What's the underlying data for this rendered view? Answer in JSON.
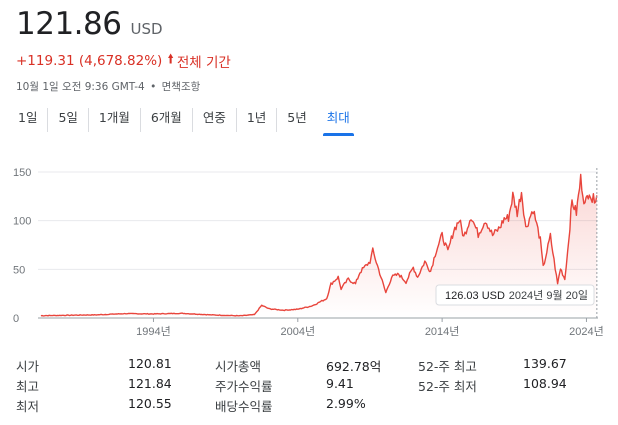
{
  "header": {
    "price": "121.86",
    "currency": "USD",
    "change": "+119.31 (4,678.82%)",
    "change_period": "전체 기간",
    "timestamp": "10월 1일 오전 9:36 GMT-4",
    "disclaimer": "면책조항"
  },
  "tabs": [
    {
      "label": "1일",
      "active": false
    },
    {
      "label": "5일",
      "active": false
    },
    {
      "label": "1개월",
      "active": false
    },
    {
      "label": "6개월",
      "active": false
    },
    {
      "label": "연중",
      "active": false
    },
    {
      "label": "1년",
      "active": false
    },
    {
      "label": "5년",
      "active": false
    },
    {
      "label": "최대",
      "active": true
    }
  ],
  "colors": {
    "line": "#e8453c",
    "down": "#d93025",
    "accent": "#1a73e8"
  },
  "chart_data": {
    "type": "area",
    "y_ticks": [
      "150",
      "100",
      "50",
      "0"
    ],
    "x_ticks": [
      "1994년",
      "2004년",
      "2014년",
      "2024년"
    ],
    "ylim": [
      0,
      150
    ],
    "x_range": [
      1986,
      2024.8
    ],
    "tooltip": {
      "value": "126.03 USD",
      "date": "2024년 9월 20일"
    },
    "points": [
      [
        1986.2,
        2.4
      ],
      [
        1988,
        2.8
      ],
      [
        1990,
        3.2
      ],
      [
        1992,
        4.5
      ],
      [
        1994,
        4.2
      ],
      [
        1996,
        4.8
      ],
      [
        1998,
        3.2
      ],
      [
        2000,
        2.2
      ],
      [
        2001,
        3.5
      ],
      [
        2001.5,
        13
      ],
      [
        2002,
        9.5
      ],
      [
        2003,
        8
      ],
      [
        2004,
        9
      ],
      [
        2005,
        12.5
      ],
      [
        2006,
        20
      ],
      [
        2006.3,
        35
      ],
      [
        2006.8,
        42
      ],
      [
        2007,
        30
      ],
      [
        2007.5,
        40
      ],
      [
        2008,
        35
      ],
      [
        2008.3,
        47
      ],
      [
        2009,
        58
      ],
      [
        2009.2,
        69
      ],
      [
        2009.6,
        50
      ],
      [
        2010.1,
        26
      ],
      [
        2010.5,
        42
      ],
      [
        2011,
        45
      ],
      [
        2011.5,
        37
      ],
      [
        2012,
        52
      ],
      [
        2012.3,
        42
      ],
      [
        2012.8,
        58
      ],
      [
        2013.2,
        48
      ],
      [
        2013.6,
        70
      ],
      [
        2014,
        85
      ],
      [
        2014.4,
        68
      ],
      [
        2014.8,
        90
      ],
      [
        2015.2,
        101
      ],
      [
        2015.5,
        83
      ],
      [
        2016,
        105
      ],
      [
        2016.5,
        86
      ],
      [
        2017,
        101
      ],
      [
        2017.5,
        85
      ],
      [
        2018,
        93
      ],
      [
        2018.3,
        102
      ],
      [
        2018.6,
        103
      ],
      [
        2018.9,
        126
      ],
      [
        2019.2,
        108
      ],
      [
        2019.5,
        130
      ],
      [
        2019.8,
        92
      ],
      [
        2020.3,
        112
      ],
      [
        2020.8,
        80
      ],
      [
        2021,
        52
      ],
      [
        2021.5,
        84
      ],
      [
        2022,
        35
      ],
      [
        2022.2,
        51
      ],
      [
        2022.5,
        40
      ],
      [
        2022.7,
        69
      ],
      [
        2023,
        120
      ],
      [
        2023.3,
        108
      ],
      [
        2023.6,
        143
      ],
      [
        2023.9,
        116
      ],
      [
        2024.2,
        132
      ],
      [
        2024.4,
        121
      ],
      [
        2024.72,
        126
      ]
    ]
  },
  "stats": [
    [
      {
        "label": "시가",
        "value": "120.81"
      },
      {
        "label": "시가총액",
        "value": "692.78억"
      },
      {
        "label": "52-주 최고",
        "value": "139.67"
      }
    ],
    [
      {
        "label": "최고",
        "value": "121.84"
      },
      {
        "label": "주가수익률",
        "value": "9.41"
      },
      {
        "label": "52-주 최저",
        "value": "108.94"
      }
    ],
    [
      {
        "label": "최저",
        "value": "120.55"
      },
      {
        "label": "배당수익률",
        "value": "2.99%"
      }
    ]
  ]
}
